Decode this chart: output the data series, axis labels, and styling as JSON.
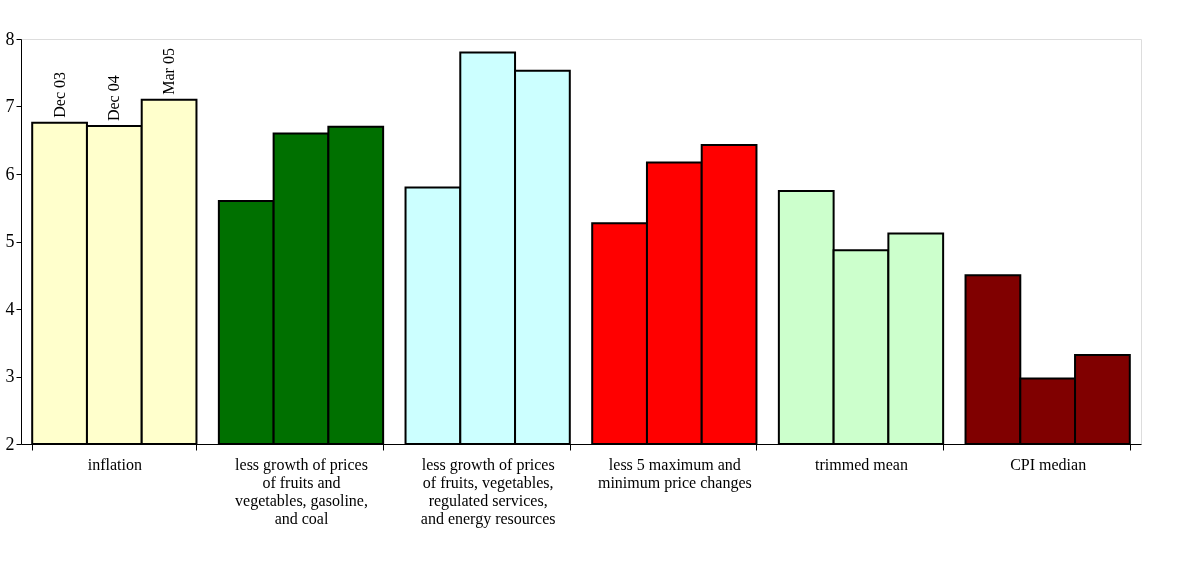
{
  "chart_data": {
    "type": "bar",
    "categories": [
      "inflation",
      "less growth of  prices of fruits and vegetables, gasoline, and coal",
      "less growth of prices of fruits, vegetables, regulated services, and energy resources",
      "less 5 maximum and minimum price changes",
      "trimmed mean",
      "CPI median"
    ],
    "series": [
      {
        "name": "Dec 03",
        "colors": [
          "#ffffcc",
          "#007000",
          "#ccffff",
          "#ff0000",
          "#ccffcc",
          "#800000"
        ],
        "values": [
          6.76,
          5.6,
          5.8,
          5.27,
          5.75,
          4.5
        ]
      },
      {
        "name": "Dec 04",
        "colors": [
          "#ffffcc",
          "#007000",
          "#ccffff",
          "#ff0000",
          "#ccffcc",
          "#800000"
        ],
        "values": [
          6.71,
          6.6,
          7.8,
          6.17,
          4.87,
          2.97
        ]
      },
      {
        "name": "Mar 05",
        "colors": [
          "#ffffcc",
          "#007000",
          "#ccffff",
          "#ff0000",
          "#ccffcc",
          "#800000"
        ],
        "values": [
          7.1,
          6.7,
          7.53,
          6.43,
          5.12,
          3.32
        ]
      }
    ],
    "ylim": [
      2,
      8
    ],
    "yticks": [
      2,
      3,
      4,
      5,
      6,
      7,
      8
    ],
    "grid": false
  }
}
